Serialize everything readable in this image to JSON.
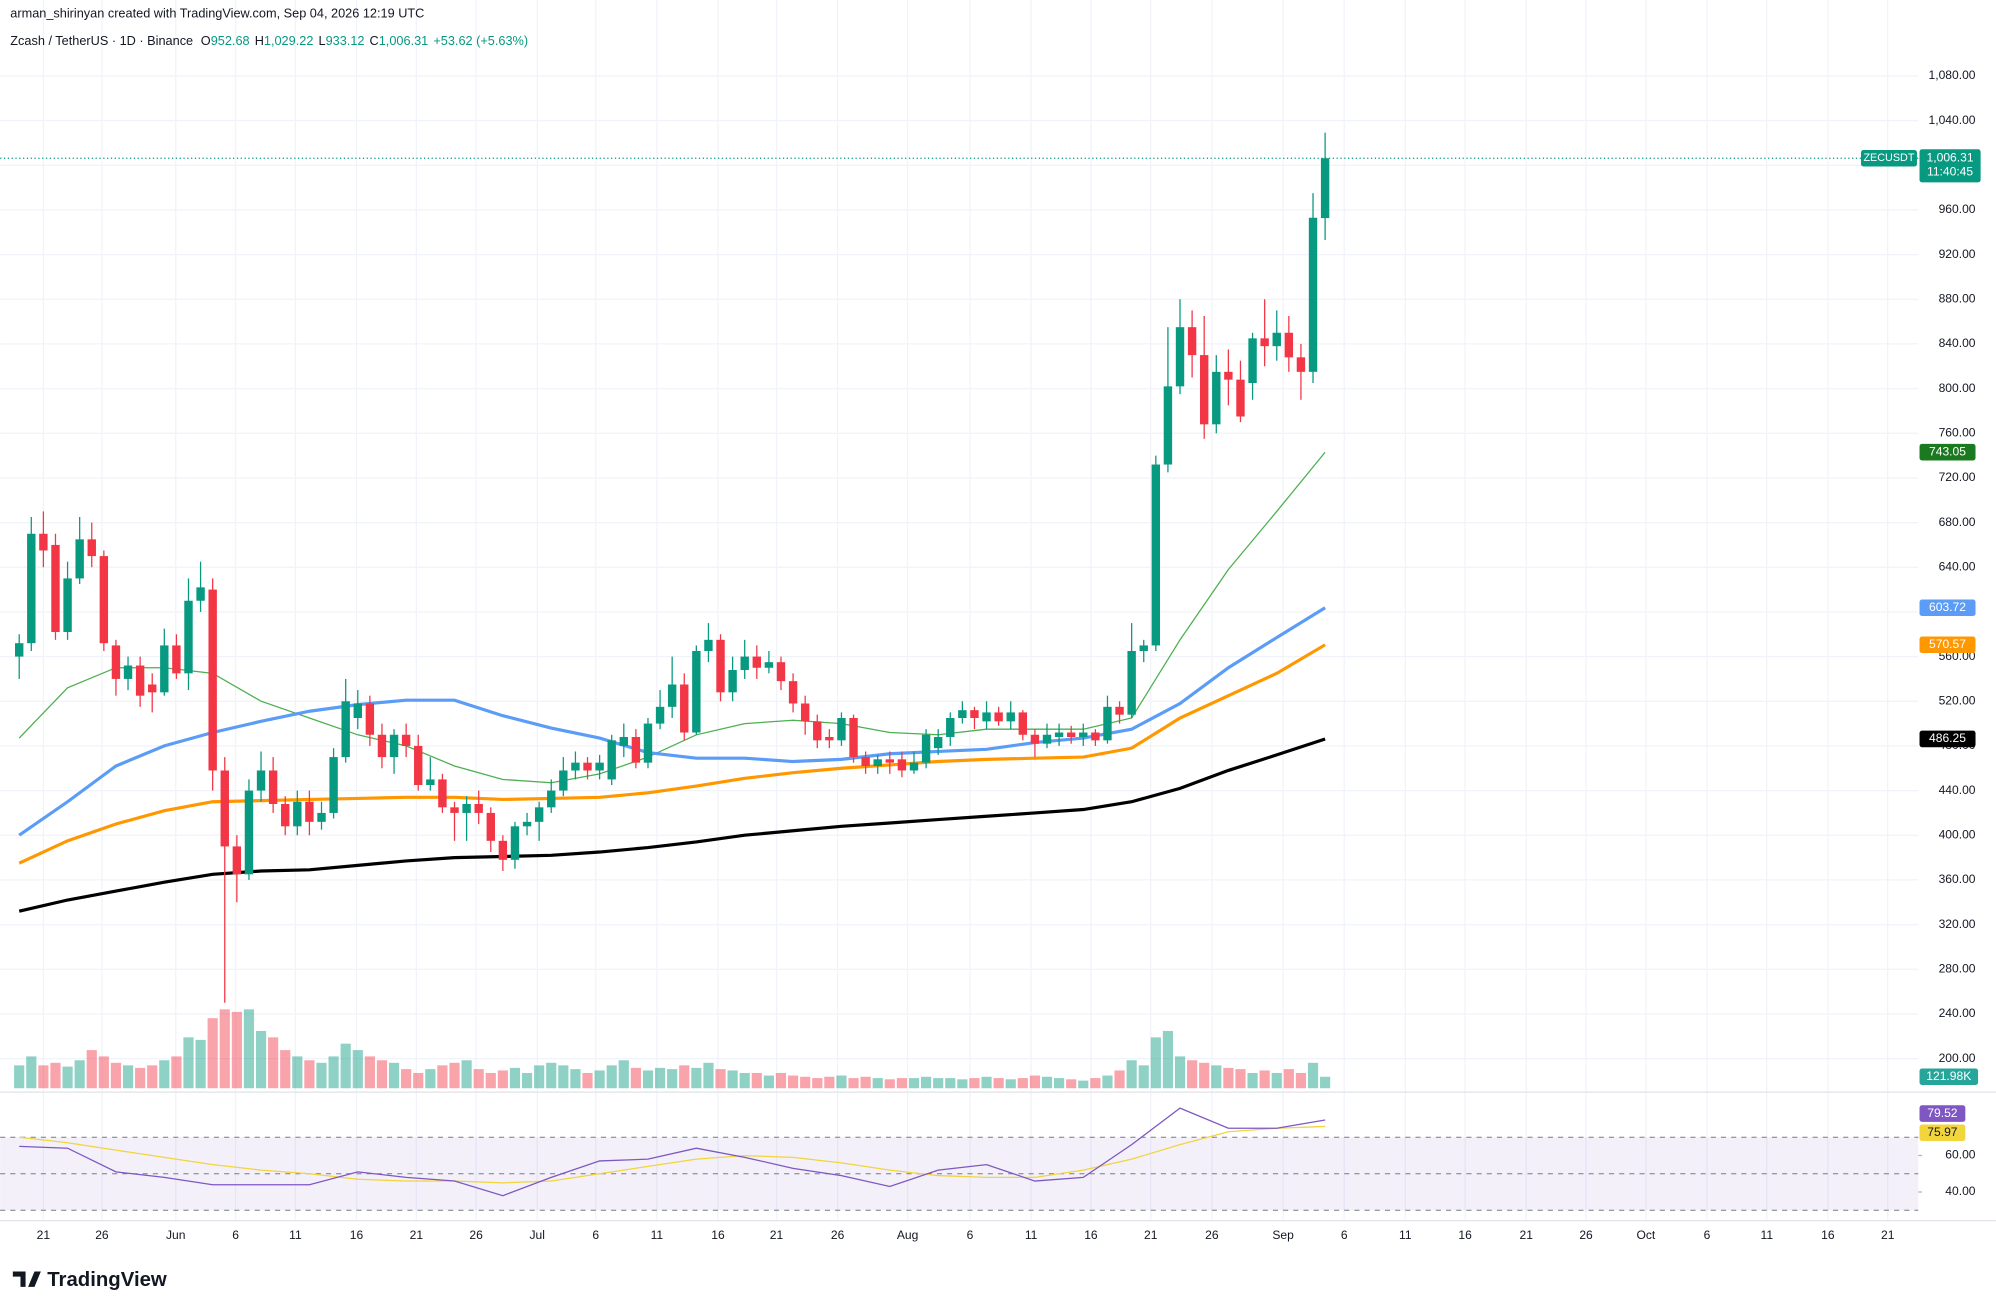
{
  "chart_data": {
    "type": "candlestick",
    "header": {
      "credit": "arman_shirinyan created with TradingView.com, Sep 04, 2026 12:19 UTC",
      "symbol": "Zcash / TetherUS · 1D · Binance",
      "o_label": "O",
      "o": "952.68",
      "h_label": "H",
      "h": "1,029.22",
      "l_label": "L",
      "l": "933.12",
      "c_label": "C",
      "c": "1,006.31",
      "change": "+53.62 (+5.63%)"
    },
    "up_color": "#089981",
    "down_color": "#f23645",
    "candles": {
      "open": [
        560,
        572,
        670,
        660,
        582,
        630,
        665,
        650,
        570,
        540,
        552,
        535,
        528,
        570,
        545,
        610,
        620,
        458,
        390,
        365,
        440,
        458,
        428,
        408,
        430,
        412,
        420,
        470,
        505,
        518,
        490,
        470,
        490,
        480,
        445,
        450,
        425,
        420,
        428,
        420,
        395,
        378,
        408,
        412,
        425,
        440,
        458,
        465,
        458,
        450,
        480,
        488,
        465,
        500,
        515,
        535,
        492,
        565,
        575,
        528,
        548,
        560,
        550,
        555,
        538,
        518,
        502,
        488,
        485,
        505,
        470,
        462,
        468,
        468,
        458,
        465,
        478,
        488,
        505,
        512,
        502,
        510,
        502,
        510,
        490,
        482,
        488,
        492,
        488,
        492,
        485,
        515,
        508,
        565,
        570,
        732,
        802,
        855,
        830,
        768,
        815,
        808,
        805,
        845,
        838,
        850,
        828,
        815,
        952.68
      ],
      "high": [
        580,
        685,
        690,
        670,
        645,
        685,
        680,
        655,
        575,
        560,
        560,
        545,
        585,
        580,
        630,
        645,
        630,
        470,
        400,
        450,
        475,
        470,
        435,
        440,
        440,
        430,
        478,
        540,
        530,
        525,
        500,
        495,
        500,
        490,
        470,
        455,
        430,
        435,
        440,
        425,
        400,
        412,
        420,
        430,
        450,
        470,
        475,
        470,
        472,
        490,
        500,
        495,
        505,
        530,
        560,
        545,
        570,
        590,
        580,
        560,
        575,
        570,
        565,
        560,
        545,
        525,
        508,
        495,
        510,
        508,
        475,
        472,
        475,
        475,
        475,
        495,
        495,
        510,
        520,
        515,
        520,
        515,
        520,
        512,
        495,
        500,
        500,
        498,
        500,
        495,
        525,
        520,
        590,
        575,
        740,
        855,
        880,
        870,
        865,
        830,
        835,
        825,
        850,
        880,
        870,
        865,
        840,
        975,
        1029.22
      ],
      "low": [
        540,
        565,
        640,
        575,
        575,
        625,
        640,
        565,
        525,
        530,
        515,
        510,
        525,
        540,
        530,
        600,
        440,
        250,
        340,
        360,
        430,
        420,
        400,
        400,
        400,
        405,
        415,
        465,
        495,
        480,
        460,
        455,
        470,
        440,
        440,
        420,
        395,
        395,
        410,
        385,
        368,
        370,
        400,
        395,
        420,
        435,
        450,
        450,
        450,
        445,
        470,
        460,
        460,
        495,
        505,
        485,
        490,
        555,
        520,
        520,
        540,
        540,
        545,
        530,
        510,
        490,
        478,
        478,
        480,
        465,
        455,
        455,
        455,
        452,
        455,
        460,
        472,
        480,
        500,
        495,
        495,
        498,
        495,
        485,
        470,
        478,
        480,
        482,
        480,
        480,
        482,
        500,
        505,
        555,
        565,
        725,
        795,
        810,
        755,
        760,
        785,
        770,
        790,
        820,
        825,
        815,
        790,
        805,
        933.12
      ],
      "close": [
        572,
        670,
        655,
        582,
        630,
        665,
        650,
        572,
        540,
        552,
        525,
        528,
        570,
        545,
        610,
        622,
        458,
        390,
        365,
        440,
        458,
        428,
        408,
        430,
        412,
        420,
        470,
        520,
        518,
        490,
        470,
        490,
        480,
        445,
        450,
        425,
        420,
        428,
        420,
        395,
        378,
        408,
        412,
        425,
        440,
        458,
        465,
        458,
        465,
        485,
        488,
        465,
        500,
        515,
        535,
        492,
        565,
        575,
        528,
        548,
        560,
        550,
        555,
        538,
        518,
        502,
        485,
        485,
        505,
        470,
        462,
        468,
        465,
        458,
        465,
        490,
        488,
        505,
        512,
        505,
        510,
        502,
        510,
        490,
        482,
        490,
        492,
        488,
        492,
        485,
        515,
        508,
        565,
        570,
        732,
        802,
        855,
        830,
        768,
        815,
        808,
        775,
        845,
        838,
        850,
        828,
        815,
        953,
        1006.31
      ]
    },
    "volume": {
      "values": [
        243,
        338,
        243,
        270,
        230,
        297,
        405,
        338,
        270,
        243,
        216,
        243,
        297,
        338,
        540,
        513,
        743,
        837,
        810,
        837,
        608,
        540,
        405,
        338,
        297,
        270,
        338,
        473,
        405,
        338,
        297,
        270,
        203,
        162,
        203,
        243,
        270,
        297,
        203,
        162,
        189,
        216,
        162,
        243,
        270,
        243,
        203,
        162,
        189,
        243,
        297,
        216,
        189,
        216,
        203,
        243,
        216,
        270,
        203,
        189,
        162,
        162,
        135,
        162,
        135,
        122,
        108,
        122,
        135,
        108,
        122,
        108,
        95,
        108,
        108,
        122,
        108,
        108,
        95,
        108,
        122,
        108,
        95,
        108,
        135,
        122,
        108,
        95,
        81,
        108,
        135,
        189,
        297,
        243,
        540,
        608,
        338,
        297,
        270,
        243,
        216,
        203,
        162,
        189,
        162,
        203,
        162,
        270,
        121.98
      ],
      "last_label": "121.98K",
      "color": "#26a69a"
    },
    "ylim": [
      170,
      1148
    ],
    "yticks": [
      {
        "value": 200,
        "label": "200.00"
      },
      {
        "value": 240,
        "label": "240.00"
      },
      {
        "value": 280,
        "label": "280.00"
      },
      {
        "value": 320,
        "label": "320.00"
      },
      {
        "value": 360,
        "label": "360.00"
      },
      {
        "value": 400,
        "label": "400.00"
      },
      {
        "value": 440,
        "label": "440.00"
      },
      {
        "value": 480,
        "label": "480.00"
      },
      {
        "value": 520,
        "label": "520.00"
      },
      {
        "value": 560,
        "label": "560.00"
      },
      {
        "value": 600,
        "label": "600.00"
      },
      {
        "value": 640,
        "label": "640.00"
      },
      {
        "value": 680,
        "label": "680.00"
      },
      {
        "value": 720,
        "label": "720.00"
      },
      {
        "value": 760,
        "label": "760.00"
      },
      {
        "value": 800,
        "label": "800.00"
      },
      {
        "value": 840,
        "label": "840.00"
      },
      {
        "value": 880,
        "label": "880.00"
      },
      {
        "value": 920,
        "label": "920.00"
      },
      {
        "value": 960,
        "label": "960.00"
      },
      {
        "value": 1000,
        "label": "1,000.00"
      },
      {
        "value": 1040,
        "label": "1,040.00"
      },
      {
        "value": 1080,
        "label": "1,080.00"
      }
    ],
    "grid": true,
    "series": [
      {
        "color": "#4caf50",
        "width": 1,
        "x": [
          0,
          4,
          8,
          12,
          16,
          20,
          24,
          28,
          32,
          36,
          40,
          44,
          48,
          52,
          56,
          60,
          64,
          68,
          72,
          76,
          80,
          84,
          88,
          92,
          96,
          100,
          104,
          108
        ],
        "values": [
          487,
          532,
          550,
          550,
          545,
          520,
          505,
          490,
          480,
          462,
          450,
          447,
          455,
          470,
          490,
          500,
          503,
          500,
          492,
          490,
          495,
          495,
          495,
          505,
          575,
          638,
          690,
          743.05
        ],
        "badge_color": "#1b7a1f"
      },
      {
        "color": "#5b9cf6",
        "width": 2.5,
        "x": [
          0,
          4,
          8,
          12,
          16,
          20,
          24,
          28,
          32,
          36,
          40,
          44,
          48,
          52,
          56,
          60,
          64,
          68,
          72,
          76,
          80,
          84,
          88,
          92,
          96,
          100,
          104,
          108
        ],
        "values": [
          400,
          430,
          462,
          480,
          492,
          502,
          511,
          517,
          521,
          521,
          507,
          496,
          487,
          474,
          469,
          469,
          466,
          468,
          473,
          475,
          477,
          483,
          487,
          495,
          518,
          550,
          577,
          603.72
        ],
        "badge_color": "#5b9cf6"
      },
      {
        "color": "#ff9800",
        "width": 2.5,
        "x": [
          0,
          4,
          8,
          12,
          16,
          20,
          24,
          28,
          32,
          36,
          40,
          44,
          48,
          52,
          56,
          60,
          64,
          68,
          72,
          76,
          80,
          84,
          88,
          92,
          96,
          100,
          104,
          108
        ],
        "values": [
          375,
          395,
          410,
          422,
          430,
          431,
          432,
          433,
          434,
          434,
          432,
          433,
          434,
          438,
          444,
          451,
          456,
          460,
          463,
          466,
          468,
          469,
          470,
          478,
          505,
          525,
          545,
          570.57
        ],
        "badge_color": "#ff9800"
      },
      {
        "color": "#000000",
        "width": 2.5,
        "x": [
          0,
          4,
          8,
          12,
          16,
          20,
          24,
          28,
          32,
          36,
          40,
          44,
          48,
          52,
          56,
          60,
          64,
          68,
          72,
          76,
          80,
          84,
          88,
          92,
          96,
          100,
          104,
          108
        ],
        "values": [
          332,
          342,
          350,
          358,
          365,
          368,
          369,
          373,
          377,
          380,
          381,
          382,
          385,
          389,
          394,
          400,
          404,
          408,
          411,
          414,
          417,
          420,
          423,
          430,
          442,
          458,
          472,
          486.25
        ],
        "badge_color": "#000000"
      }
    ],
    "last_price": {
      "symbol": "ZECUSDT",
      "value": 1006.31,
      "label": "1,006.31",
      "countdown": "11:40:45"
    },
    "x_labels": [
      "21",
      "26",
      "Jun",
      "6",
      "11",
      "16",
      "21",
      "26",
      "Jul",
      "6",
      "11",
      "16",
      "21",
      "26",
      "Aug",
      "6",
      "11",
      "16",
      "21",
      "26",
      "Sep",
      "6",
      "11",
      "16",
      "21",
      "26",
      "Oct",
      "6",
      "11",
      "16",
      "21"
    ],
    "rsi": {
      "ylim": [
        25,
        92
      ],
      "yticks": [
        {
          "value": 60,
          "label": "60.00"
        },
        {
          "value": 40,
          "label": "40.00"
        }
      ],
      "levels": [
        30,
        50,
        70
      ],
      "series": [
        {
          "color": "#7e57c2",
          "x": [
            0,
            4,
            8,
            12,
            16,
            20,
            24,
            28,
            32,
            36,
            40,
            44,
            48,
            52,
            56,
            60,
            64,
            68,
            72,
            76,
            80,
            84,
            88,
            92,
            96,
            100,
            104,
            108
          ],
          "values": [
            65,
            64,
            51,
            48,
            44,
            44,
            44,
            51,
            48,
            46,
            38,
            48,
            57,
            58,
            64,
            59,
            53,
            49,
            43,
            52,
            55,
            46,
            48,
            66,
            86,
            75,
            75,
            79.52
          ]
        },
        {
          "color": "#f2d43d",
          "x": [
            0,
            4,
            8,
            12,
            16,
            20,
            24,
            28,
            32,
            36,
            40,
            44,
            48,
            52,
            56,
            60,
            64,
            68,
            72,
            76,
            80,
            84,
            88,
            92,
            96,
            100,
            104,
            108
          ],
          "values": [
            70,
            67,
            63,
            59,
            55,
            52,
            50,
            47,
            46,
            46,
            45,
            46,
            50,
            54,
            58,
            60,
            59,
            56,
            52,
            49,
            48,
            48,
            52,
            58,
            66,
            73,
            75,
            75.97
          ]
        }
      ]
    },
    "brand": "TradingView"
  }
}
